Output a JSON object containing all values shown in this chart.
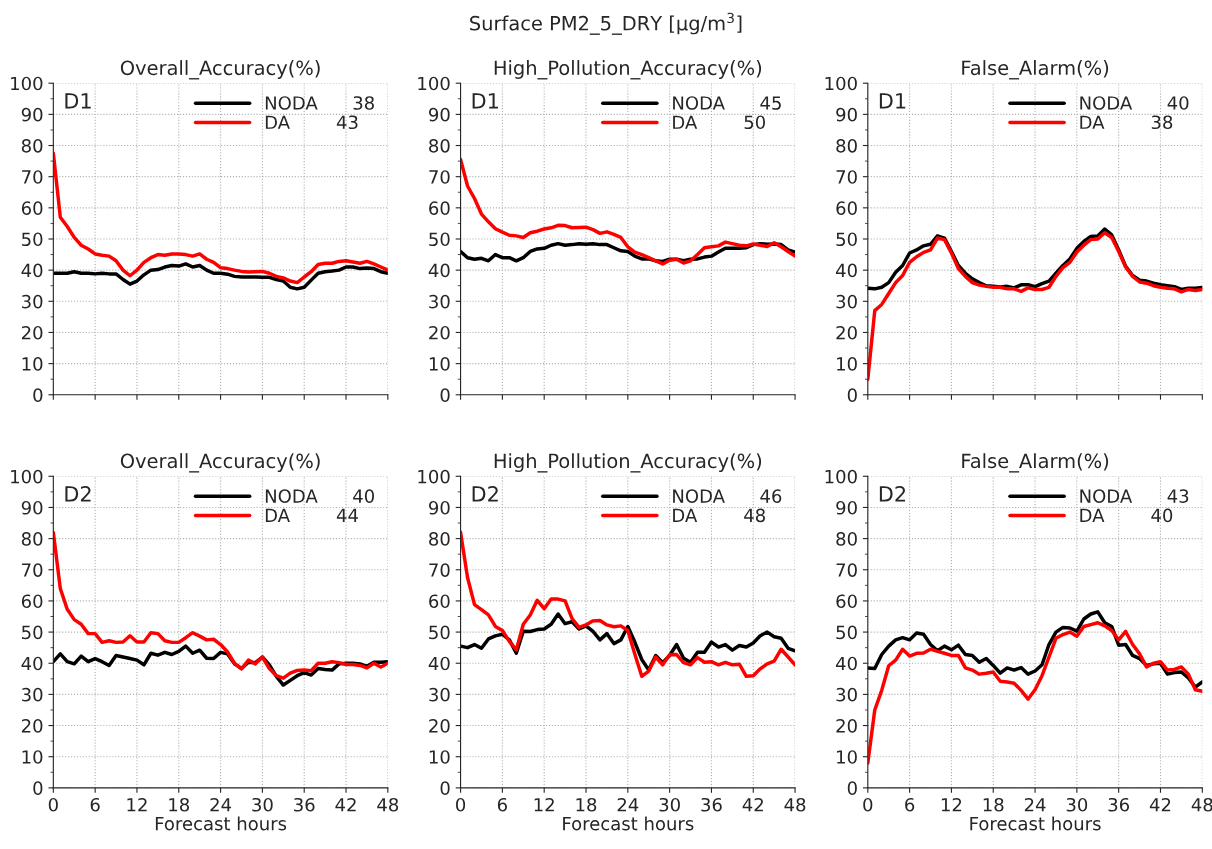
{
  "chart_data": [
    {
      "type": "line",
      "title": "Overall_Accuracy(%)",
      "annotations": [
        "Surface PM2_5_DRY [μg/m$^{3}$]",
        "D1"
      ],
      "x": [
        0,
        1,
        2,
        3,
        4,
        5,
        6,
        7,
        8,
        9,
        10,
        11,
        12,
        13,
        14,
        15,
        16,
        17,
        18,
        19,
        20,
        21,
        22,
        23,
        24,
        25,
        26,
        27,
        28,
        29,
        30,
        31,
        32,
        33,
        34,
        35,
        36,
        37,
        38,
        39,
        40,
        41,
        42,
        43,
        44,
        45,
        46,
        47,
        48
      ],
      "xlim": [
        0,
        48
      ],
      "xticks": [
        0,
        6,
        12,
        18,
        24,
        30,
        36,
        42,
        48
      ],
      "ylim": [
        0,
        100
      ],
      "yticks": [
        0,
        10,
        20,
        30,
        40,
        50,
        60,
        70,
        80,
        90,
        100
      ],
      "grid": true,
      "legend": "top right",
      "line_style": "solid",
      "tick_labels": "y",
      "series": [
        {
          "name": "NODA 38",
          "color": "#000000",
          "values": [
            39,
            39,
            39,
            39.5,
            39,
            39,
            38.8,
            39,
            38.8,
            38.8,
            37,
            35.5,
            36.5,
            38.5,
            40,
            40.2,
            41,
            41.5,
            41.3,
            42,
            41,
            41.5,
            40,
            39,
            39,
            38.7,
            38,
            37.8,
            37.8,
            37.8,
            37.7,
            37.7,
            37,
            36.5,
            34.5,
            34,
            34.5,
            36.8,
            39,
            39.5,
            39.7,
            40,
            41,
            41,
            40.5,
            40.7,
            40.5,
            39.5,
            39
          ]
        },
        {
          "name": "DA 43",
          "color": "#ff0000",
          "values": [
            77.5,
            57,
            54,
            50.5,
            48,
            46.8,
            45.2,
            44.8,
            44.5,
            43,
            40,
            38.2,
            40,
            42.5,
            44,
            45,
            44.8,
            45.2,
            45.2,
            45,
            44.5,
            45.2,
            43.5,
            42.5,
            40.8,
            40.5,
            40,
            39.6,
            39.4,
            39.5,
            39.6,
            39,
            38,
            37.5,
            36.5,
            36,
            37.8,
            39.5,
            41.8,
            42.2,
            42.2,
            42.8,
            43,
            42.6,
            42.2,
            42.8,
            42,
            41,
            40
          ]
        }
      ]
    },
    {
      "type": "line",
      "title": "High_Pollution_Accuracy(%)",
      "annotations": [
        "D1"
      ],
      "x": [
        0,
        1,
        2,
        3,
        4,
        5,
        6,
        7,
        8,
        9,
        10,
        11,
        12,
        13,
        14,
        15,
        16,
        17,
        18,
        19,
        20,
        21,
        22,
        23,
        24,
        25,
        26,
        27,
        28,
        29,
        30,
        31,
        32,
        33,
        34,
        35,
        36,
        37,
        38,
        39,
        40,
        41,
        42,
        43,
        44,
        45,
        46,
        47,
        48
      ],
      "xlim": [
        0,
        48
      ],
      "xticks": [
        0,
        6,
        12,
        18,
        24,
        30,
        36,
        42,
        48
      ],
      "ylim": [
        0,
        100
      ],
      "yticks": [
        0,
        10,
        20,
        30,
        40,
        50,
        60,
        70,
        80,
        90,
        100
      ],
      "grid": true,
      "legend": "top right",
      "line_style": "solid",
      "tick_labels": "y",
      "series": [
        {
          "name": "NODA 45",
          "color": "#000000",
          "values": [
            46,
            44,
            43.5,
            43.8,
            43,
            45,
            44,
            44,
            43,
            44,
            46,
            46.8,
            47,
            48,
            48.5,
            48,
            48.2,
            48.5,
            48.3,
            48.5,
            48.2,
            48.2,
            47.2,
            46.2,
            46,
            44.5,
            43.6,
            43.6,
            43,
            42.8,
            43.5,
            43.5,
            43,
            43.5,
            43.6,
            44.2,
            44.5,
            45.8,
            47,
            47,
            47,
            47.2,
            48.2,
            48.5,
            48.3,
            48.4,
            48.2,
            46.5,
            45.8
          ]
        },
        {
          "name": "DA 50",
          "color": "#ff0000",
          "values": [
            75.5,
            67,
            63,
            58,
            55.5,
            53.3,
            52.2,
            51.2,
            51,
            50.5,
            52,
            52.5,
            53.2,
            53.6,
            54.4,
            54.3,
            53.6,
            53.7,
            53.8,
            53,
            51.8,
            52.3,
            51.5,
            50.5,
            47.5,
            45.8,
            45,
            44,
            43,
            42,
            43.2,
            43.5,
            42.3,
            43,
            45,
            47.2,
            47.5,
            47.8,
            49,
            48.5,
            48,
            47.8,
            48.4,
            48,
            47.6,
            48.8,
            47.5,
            46,
            44.5
          ]
        }
      ]
    },
    {
      "type": "line",
      "title": "False_Alarm(%)",
      "annotations": [
        "D1"
      ],
      "x": [
        0,
        1,
        2,
        3,
        4,
        5,
        6,
        7,
        8,
        9,
        10,
        11,
        12,
        13,
        14,
        15,
        16,
        17,
        18,
        19,
        20,
        21,
        22,
        23,
        24,
        25,
        26,
        27,
        28,
        29,
        30,
        31,
        32,
        33,
        34,
        35,
        36,
        37,
        38,
        39,
        40,
        41,
        42,
        43,
        44,
        45,
        46,
        47,
        48
      ],
      "xlim": [
        0,
        48
      ],
      "xticks": [
        0,
        6,
        12,
        18,
        24,
        30,
        36,
        42,
        48
      ],
      "ylim": [
        0,
        100
      ],
      "yticks": [
        0,
        10,
        20,
        30,
        40,
        50,
        60,
        70,
        80,
        90,
        100
      ],
      "grid": true,
      "legend": "top right",
      "line_style": "solid",
      "tick_labels": "y",
      "series": [
        {
          "name": "NODA 40",
          "color": "#000000",
          "values": [
            34.2,
            34,
            34.5,
            36,
            39.3,
            41.5,
            45.5,
            46.5,
            47.8,
            48.3,
            51,
            50.3,
            46,
            41.5,
            39,
            37.2,
            36,
            35,
            34.8,
            34.6,
            34.8,
            34.3,
            35.3,
            35.3,
            34.7,
            35.7,
            36.5,
            39,
            41.5,
            43.6,
            47,
            49.2,
            50.8,
            51,
            53.2,
            51.3,
            46.5,
            41.2,
            38.3,
            36.8,
            36.5,
            35.8,
            35.3,
            35,
            34.7,
            33.8,
            34.2,
            34.2,
            34.4
          ]
        },
        {
          "name": "DA 38",
          "color": "#ff0000",
          "values": [
            5,
            27,
            29,
            32.5,
            36,
            38.3,
            42.5,
            44.3,
            45.7,
            46.5,
            50.3,
            49.8,
            45.5,
            40.5,
            38,
            36,
            35.2,
            34.8,
            34.5,
            34.5,
            34,
            34,
            33.2,
            34.3,
            33.8,
            33.8,
            34.5,
            38,
            40.8,
            42.5,
            45.8,
            48,
            49.8,
            50,
            52,
            50.5,
            46,
            41,
            38,
            36.2,
            35.8,
            35,
            34.5,
            34.2,
            34,
            33,
            33.8,
            33.5,
            33.8
          ]
        }
      ]
    },
    {
      "type": "line",
      "title": "Overall_Accuracy(%)",
      "xlabel": "Forecast hours",
      "annotations": [
        "D2"
      ],
      "x": [
        0,
        1,
        2,
        3,
        4,
        5,
        6,
        7,
        8,
        9,
        10,
        11,
        12,
        13,
        14,
        15,
        16,
        17,
        18,
        19,
        20,
        21,
        22,
        23,
        24,
        25,
        26,
        27,
        28,
        29,
        30,
        31,
        32,
        33,
        34,
        35,
        36,
        37,
        38,
        39,
        40,
        41,
        42,
        43,
        44,
        45,
        46,
        47,
        48
      ],
      "xlim": [
        0,
        48
      ],
      "xticks": [
        0,
        6,
        12,
        18,
        24,
        30,
        36,
        42,
        48
      ],
      "ylim": [
        0,
        100
      ],
      "yticks": [
        0,
        10,
        20,
        30,
        40,
        50,
        60,
        70,
        80,
        90,
        100
      ],
      "grid": true,
      "legend": "top right",
      "line_style": "solid",
      "series": [
        {
          "name": "NODA 40",
          "color": "#000000",
          "values": [
            40.5,
            43,
            40.5,
            39.8,
            42.3,
            40.5,
            41.5,
            40.5,
            39.3,
            42.5,
            42,
            41.5,
            41,
            39.5,
            43.2,
            42.6,
            43.5,
            42.8,
            43.8,
            45.5,
            43.2,
            44.2,
            41.6,
            41.5,
            43.5,
            43,
            39.8,
            38.3,
            40.3,
            40.2,
            42,
            39.5,
            35.8,
            33,
            34.5,
            36,
            37,
            36.2,
            38.3,
            38,
            37.8,
            39.8,
            40,
            40,
            39.8,
            39,
            40.3,
            40.3,
            40.5
          ]
        },
        {
          "name": "DA 44",
          "color": "#ff0000",
          "values": [
            82,
            64,
            57.3,
            54,
            52.5,
            49.5,
            49.5,
            46.7,
            47.2,
            46.7,
            46.8,
            48.8,
            46.8,
            46.8,
            49.8,
            49.5,
            47.2,
            46.7,
            46.7,
            48.2,
            49.8,
            48.7,
            47.5,
            47.7,
            46,
            43.6,
            40,
            38.2,
            41,
            39.8,
            42,
            38.3,
            36,
            35.2,
            36.8,
            37.7,
            37.8,
            37.6,
            40,
            40,
            40.5,
            40.2,
            39.6,
            39.6,
            39.3,
            38.5,
            40,
            38.8,
            40
          ]
        }
      ]
    },
    {
      "type": "line",
      "title": "High_Pollution_Accuracy(%)",
      "xlabel": "Forecast hours",
      "annotations": [
        "D2"
      ],
      "x": [
        0,
        1,
        2,
        3,
        4,
        5,
        6,
        7,
        8,
        9,
        10,
        11,
        12,
        13,
        14,
        15,
        16,
        17,
        18,
        19,
        20,
        21,
        22,
        23,
        24,
        25,
        26,
        27,
        28,
        29,
        30,
        31,
        32,
        33,
        34,
        35,
        36,
        37,
        38,
        39,
        40,
        41,
        42,
        43,
        44,
        45,
        46,
        47,
        48
      ],
      "xlim": [
        0,
        48
      ],
      "xticks": [
        0,
        6,
        12,
        18,
        24,
        30,
        36,
        42,
        48
      ],
      "ylim": [
        0,
        100
      ],
      "yticks": [
        0,
        10,
        20,
        30,
        40,
        50,
        60,
        70,
        80,
        90,
        100
      ],
      "grid": true,
      "legend": "top right",
      "line_style": "solid",
      "series": [
        {
          "name": "NODA 46",
          "color": "#000000",
          "values": [
            45.5,
            45,
            46,
            44.8,
            47.8,
            48.8,
            49.3,
            47.5,
            43.2,
            50.3,
            50.2,
            50.8,
            51,
            52.5,
            55.8,
            52.7,
            53.3,
            51,
            52,
            50.2,
            47.5,
            49.5,
            46.3,
            47.5,
            51.8,
            46.8,
            41.2,
            37.8,
            42.5,
            40.2,
            42.5,
            46,
            41.6,
            40.3,
            43.5,
            43.5,
            46.8,
            45.2,
            46,
            44.2,
            45.7,
            45.2,
            46.5,
            48.8,
            50,
            48.5,
            48,
            44.8,
            44
          ]
        },
        {
          "name": "DA 48",
          "color": "#ff0000",
          "values": [
            82,
            67.5,
            58.8,
            57.2,
            55.5,
            51.8,
            50.5,
            47,
            44.3,
            52.5,
            55.5,
            60.2,
            57.5,
            60.6,
            60.6,
            60,
            54.3,
            51.5,
            52.3,
            53.6,
            53.7,
            52.3,
            51.7,
            52,
            50.5,
            43,
            35.8,
            37.5,
            42,
            39.5,
            42.7,
            42.8,
            40.2,
            39.5,
            41.8,
            40.3,
            40.5,
            39.5,
            40.3,
            39.5,
            39.7,
            35.8,
            36,
            38.2,
            39.8,
            40.7,
            44.5,
            42,
            39.5
          ]
        }
      ]
    },
    {
      "type": "line",
      "title": "False_Alarm(%)",
      "xlabel": "Forecast hours",
      "annotations": [
        "D2"
      ],
      "x": [
        0,
        1,
        2,
        3,
        4,
        5,
        6,
        7,
        8,
        9,
        10,
        11,
        12,
        13,
        14,
        15,
        16,
        17,
        18,
        19,
        20,
        21,
        22,
        23,
        24,
        25,
        26,
        27,
        28,
        29,
        30,
        31,
        32,
        33,
        34,
        35,
        36,
        37,
        38,
        39,
        40,
        41,
        42,
        43,
        44,
        45,
        46,
        47,
        48
      ],
      "xlim": [
        0,
        48
      ],
      "xticks": [
        0,
        6,
        12,
        18,
        24,
        30,
        36,
        42,
        48
      ],
      "ylim": [
        0,
        100
      ],
      "yticks": [
        0,
        10,
        20,
        30,
        40,
        50,
        60,
        70,
        80,
        90,
        100
      ],
      "grid": true,
      "legend": "top right",
      "line_style": "solid",
      "series": [
        {
          "name": "NODA 43",
          "color": "#000000",
          "values": [
            38.5,
            38.3,
            42.8,
            45.5,
            47.5,
            48.2,
            47.5,
            49.7,
            49.3,
            46,
            44,
            45.5,
            44.3,
            45.8,
            42.8,
            42.5,
            40.3,
            41.5,
            39.3,
            36.8,
            38.5,
            37.8,
            38.6,
            36.5,
            37.5,
            39.5,
            46,
            50,
            51.5,
            51.3,
            50.3,
            54.2,
            55.8,
            56.5,
            53,
            51.8,
            45.8,
            46,
            42.5,
            41.5,
            39.3,
            39.8,
            40,
            36.5,
            37,
            37.2,
            35.3,
            32.3,
            34
          ]
        },
        {
          "name": "DA 40",
          "color": "#ff0000",
          "values": [
            8,
            25,
            31.3,
            39.2,
            41,
            44.5,
            42.3,
            43.2,
            43.3,
            44.5,
            43.8,
            43.2,
            42.5,
            42.5,
            38.5,
            37.8,
            36.5,
            36.8,
            37.2,
            34.2,
            34,
            33.6,
            31.3,
            28.5,
            31.5,
            36,
            42,
            48,
            49.2,
            50,
            48.7,
            51.8,
            52.4,
            53,
            52,
            50.5,
            47.5,
            50.2,
            46,
            43,
            38.8,
            40,
            40.5,
            37.8,
            38,
            38.8,
            36.5,
            31.5,
            31
          ]
        }
      ]
    }
  ]
}
